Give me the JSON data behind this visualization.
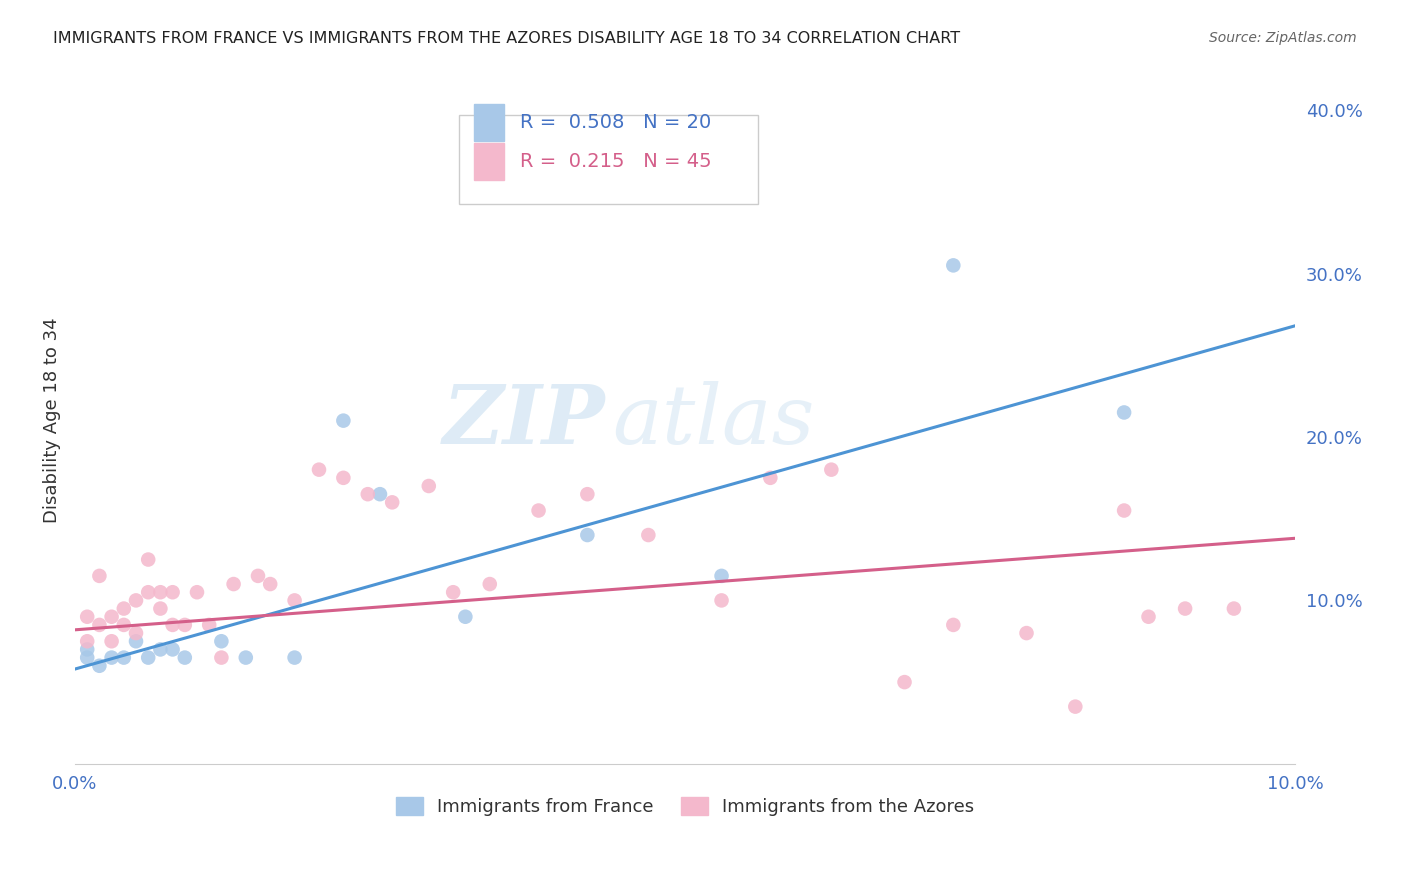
{
  "title": "IMMIGRANTS FROM FRANCE VS IMMIGRANTS FROM THE AZORES DISABILITY AGE 18 TO 34 CORRELATION CHART",
  "source": "Source: ZipAtlas.com",
  "ylabel": "Disability Age 18 to 34",
  "xlim": [
    0.0,
    0.1
  ],
  "ylim": [
    0.0,
    0.42
  ],
  "ytick_labels_right": [
    "40.0%",
    "30.0%",
    "20.0%",
    "10.0%"
  ],
  "ytick_positions": [
    0.4,
    0.3,
    0.2,
    0.1
  ],
  "xtick_labels": [
    "0.0%",
    "10.0%"
  ],
  "xtick_positions": [
    0.0,
    0.1
  ],
  "grid_color": "#d8d8d8",
  "background_color": "#ffffff",
  "france_color": "#a8c8e8",
  "azores_color": "#f4b8cc",
  "france_line_color": "#4d94d4",
  "azores_line_color": "#d45f8a",
  "tick_color": "#4472c4",
  "legend_label_france": "Immigrants from France",
  "legend_label_azores": "Immigrants from the Azores",
  "r_france": "0.508",
  "n_france": "20",
  "r_azores": "0.215",
  "n_azores": "45",
  "watermark_zip": "ZIP",
  "watermark_atlas": "atlas",
  "france_scatter_x": [
    0.001,
    0.001,
    0.002,
    0.003,
    0.004,
    0.005,
    0.006,
    0.007,
    0.008,
    0.009,
    0.012,
    0.014,
    0.018,
    0.022,
    0.025,
    0.032,
    0.042,
    0.053,
    0.072,
    0.086
  ],
  "france_scatter_y": [
    0.07,
    0.065,
    0.06,
    0.065,
    0.065,
    0.075,
    0.065,
    0.07,
    0.07,
    0.065,
    0.075,
    0.065,
    0.065,
    0.21,
    0.165,
    0.09,
    0.14,
    0.115,
    0.305,
    0.215
  ],
  "azores_scatter_x": [
    0.001,
    0.001,
    0.002,
    0.002,
    0.003,
    0.003,
    0.004,
    0.004,
    0.005,
    0.005,
    0.006,
    0.006,
    0.007,
    0.007,
    0.008,
    0.008,
    0.009,
    0.01,
    0.011,
    0.012,
    0.013,
    0.015,
    0.016,
    0.018,
    0.02,
    0.022,
    0.024,
    0.026,
    0.029,
    0.031,
    0.034,
    0.038,
    0.042,
    0.047,
    0.053,
    0.057,
    0.062,
    0.068,
    0.072,
    0.078,
    0.082,
    0.086,
    0.088,
    0.091,
    0.095
  ],
  "azores_scatter_y": [
    0.09,
    0.075,
    0.115,
    0.085,
    0.09,
    0.075,
    0.095,
    0.085,
    0.1,
    0.08,
    0.125,
    0.105,
    0.105,
    0.095,
    0.105,
    0.085,
    0.085,
    0.105,
    0.085,
    0.065,
    0.11,
    0.115,
    0.11,
    0.1,
    0.18,
    0.175,
    0.165,
    0.16,
    0.17,
    0.105,
    0.11,
    0.155,
    0.165,
    0.14,
    0.1,
    0.175,
    0.18,
    0.05,
    0.085,
    0.08,
    0.035,
    0.155,
    0.09,
    0.095,
    0.095
  ],
  "france_line_x": [
    0.0,
    0.1
  ],
  "france_line_y": [
    0.058,
    0.268
  ],
  "azores_line_x": [
    0.0,
    0.1
  ],
  "azores_line_y": [
    0.082,
    0.138
  ]
}
